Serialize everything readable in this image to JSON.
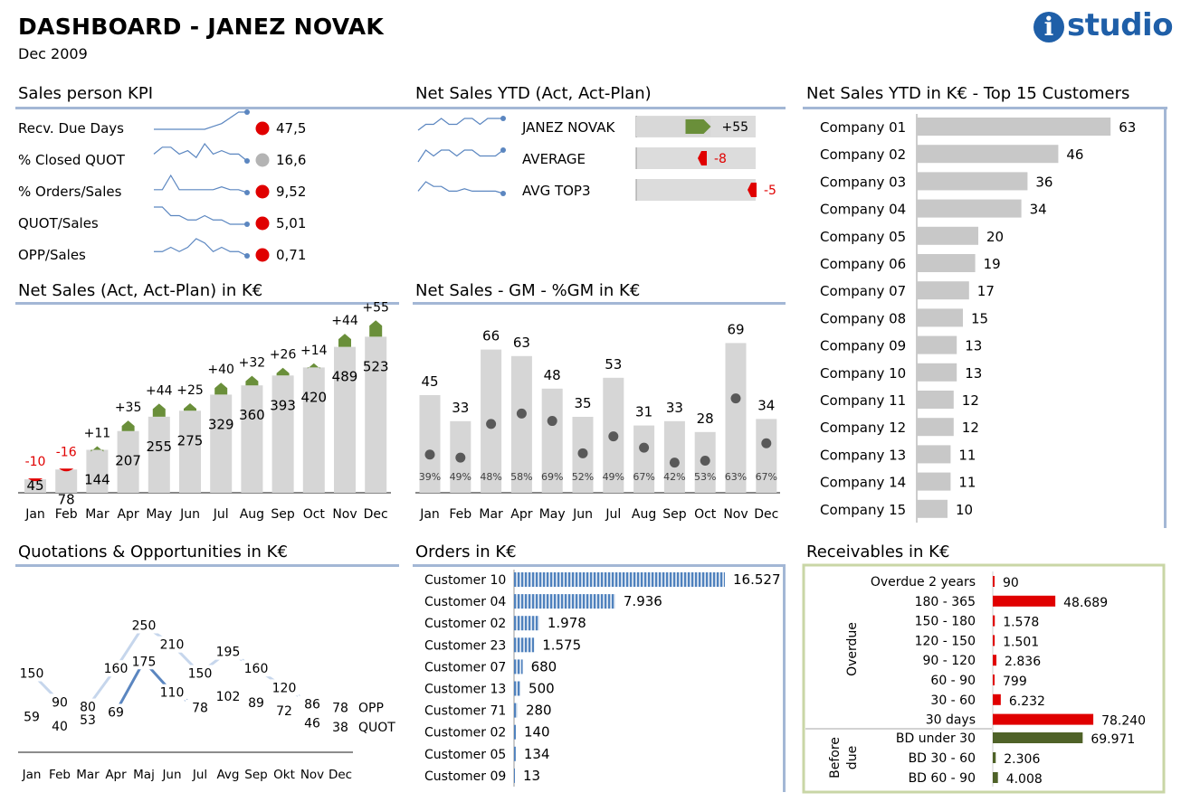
{
  "header": {
    "title": "DASHBOARD - JANEZ NOVAK",
    "date": "Dec 2009",
    "logo_text": "studio",
    "logo_letter": "i",
    "logo_color": "#1f5fa8"
  },
  "colors": {
    "accent_rule": "#a3b7d5",
    "bar_gray": "#c8c8c8",
    "positive_green": "#6a8f3a",
    "negative_red": "#e00000",
    "series_blue": "#5b86c0",
    "series_light": "#c6d6ec",
    "receivables_frame": "#c9d6a6",
    "before_due_green": "#4f6228"
  },
  "kpi": {
    "title": "Sales person KPI",
    "rows": [
      {
        "label": "Recv. Due Days",
        "value": "47,5",
        "status": "red",
        "spark": [
          3,
          3,
          3,
          3,
          3,
          3,
          3,
          4,
          5,
          7,
          9,
          9
        ]
      },
      {
        "label": "% Closed QUOT",
        "value": "16,6",
        "status": "gray",
        "spark": [
          5,
          7,
          7,
          5,
          6,
          4,
          8,
          5,
          6,
          5,
          5,
          3
        ]
      },
      {
        "label": "% Orders/Sales",
        "value": "9,52",
        "status": "red",
        "spark": [
          3,
          3,
          8,
          3,
          3,
          3,
          3,
          3,
          4,
          3,
          3,
          2
        ]
      },
      {
        "label": "QUOT/Sales",
        "value": "5,01",
        "status": "red",
        "spark": [
          8,
          8,
          6,
          6,
          5,
          5,
          6,
          5,
          5,
          4,
          4,
          4
        ]
      },
      {
        "label": "OPP/Sales",
        "value": "0,71",
        "status": "red",
        "spark": [
          4,
          4,
          5,
          4,
          5,
          7,
          6,
          4,
          5,
          4,
          4,
          3
        ]
      }
    ]
  },
  "ytd": {
    "title": "Net Sales YTD (Act, Act-Plan)",
    "rows": [
      {
        "label": "JANEZ NOVAK",
        "delta": "+55",
        "delta_value": 55,
        "spark": [
          4,
          5,
          5,
          6,
          5,
          5,
          6,
          6,
          5,
          6,
          6,
          6
        ]
      },
      {
        "label": "AVERAGE",
        "delta": "-8",
        "delta_value": -8,
        "spark": [
          3,
          5,
          4,
          5,
          5,
          4,
          5,
          5,
          4,
          4,
          4,
          5
        ]
      },
      {
        "label": "AVG TOP3",
        "delta": "-5",
        "delta_value": -5,
        "spark": [
          3,
          7,
          5,
          5,
          3,
          3,
          4,
          3,
          3,
          3,
          3,
          2
        ]
      }
    ]
  },
  "top15": {
    "title": "Net Sales YTD in K€ - Top 15 Customers",
    "chart_data": {
      "type": "bar",
      "categories": [
        "Company 01",
        "Company 02",
        "Company 03",
        "Company 04",
        "Company 05",
        "Company 06",
        "Company 07",
        "Company 08",
        "Company 09",
        "Company 10",
        "Company 11",
        "Company 12",
        "Company 13",
        "Company 14",
        "Company 15"
      ],
      "values": [
        63,
        46,
        36,
        34,
        20,
        19,
        17,
        15,
        13,
        13,
        12,
        12,
        11,
        11,
        10
      ]
    }
  },
  "netsales": {
    "title": "Net Sales (Act, Act-Plan) in K€",
    "chart_data": {
      "type": "bar",
      "categories": [
        "Jan",
        "Feb",
        "Mar",
        "Apr",
        "May",
        "Jun",
        "Jul",
        "Aug",
        "Sep",
        "Oct",
        "Nov",
        "Dec"
      ],
      "series": [
        {
          "name": "Act",
          "values": [
            45,
            78,
            144,
            207,
            255,
            275,
            329,
            360,
            393,
            420,
            489,
            523
          ]
        },
        {
          "name": "Act-Plan",
          "values": [
            -10,
            -16,
            11,
            35,
            44,
            25,
            40,
            32,
            26,
            14,
            44,
            55
          ]
        }
      ],
      "delta_labels": [
        "-10",
        "-16",
        "+11",
        "+35",
        "+44",
        "+25",
        "+40",
        "+32",
        "+26",
        "+14",
        "+44",
        "+55"
      ]
    }
  },
  "gm": {
    "title": "Net Sales - GM - %GM in K€",
    "chart_data": {
      "type": "bar",
      "categories": [
        "Jan",
        "Feb",
        "Mar",
        "Apr",
        "May",
        "Jun",
        "Jul",
        "Aug",
        "Sep",
        "Oct",
        "Nov",
        "Dec"
      ],
      "values": [
        45,
        33,
        66,
        63,
        48,
        35,
        53,
        31,
        33,
        28,
        69,
        34
      ],
      "gm": [
        17.6,
        16.2,
        31.7,
        36.5,
        33.1,
        18.2,
        26,
        20.8,
        13.9,
        14.8,
        43.5,
        22.8
      ],
      "gm_pct": [
        "39%",
        "49%",
        "48%",
        "58%",
        "69%",
        "52%",
        "49%",
        "67%",
        "42%",
        "53%",
        "63%",
        "67%"
      ]
    }
  },
  "quot": {
    "title": "Quotations & Opportunities in K€",
    "chart_data": {
      "type": "line",
      "categories": [
        "Jan",
        "Feb",
        "Mar",
        "Apr",
        "Maj",
        "Jun",
        "Jul",
        "Avg",
        "Sep",
        "Okt",
        "Nov",
        "Dec"
      ],
      "series": [
        {
          "name": "OPP",
          "values": [
            150,
            90,
            80,
            160,
            250,
            210,
            150,
            195,
            160,
            120,
            86,
            78
          ]
        },
        {
          "name": "QUOT",
          "values": [
            59,
            40,
            53,
            69,
            175,
            110,
            78,
            102,
            89,
            72,
            46,
            38
          ]
        }
      ]
    }
  },
  "orders": {
    "title": "Orders in K€",
    "chart_data": {
      "type": "bar",
      "categories": [
        "Customer 10",
        "Customer 04",
        "Customer 02",
        "Customer 23",
        "Customer 07",
        "Customer 13",
        "Customer 71",
        "Customer 02",
        "Customer 05",
        "Customer 09"
      ],
      "values": [
        16527,
        7936,
        1978,
        1575,
        680,
        500,
        280,
        140,
        134,
        13
      ],
      "labels": [
        "16.527",
        "7.936",
        "1.978",
        "1.575",
        "680",
        "500",
        "280",
        "140",
        "134",
        "13"
      ]
    }
  },
  "receivables": {
    "title": "Receivables in K€",
    "group_overdue": "Overdue",
    "group_before_line1": "Before",
    "group_before_line2": "due",
    "chart_data": {
      "type": "bar",
      "categories": [
        "Overdue 2 years",
        "180 - 365",
        "150 - 180",
        "120 - 150",
        "90 - 120",
        "60 - 90",
        "30 - 60",
        "30 days",
        "BD under 30",
        "BD 30 - 60",
        "BD 60 - 90"
      ],
      "values": [
        90,
        48689,
        1578,
        1501,
        2836,
        799,
        6232,
        78240,
        69971,
        2306,
        4008
      ],
      "labels": [
        "90",
        "48.689",
        "1.578",
        "1.501",
        "2.836",
        "799",
        "6.232",
        "78.240",
        "69.971",
        "2.306",
        "4.008"
      ]
    }
  }
}
